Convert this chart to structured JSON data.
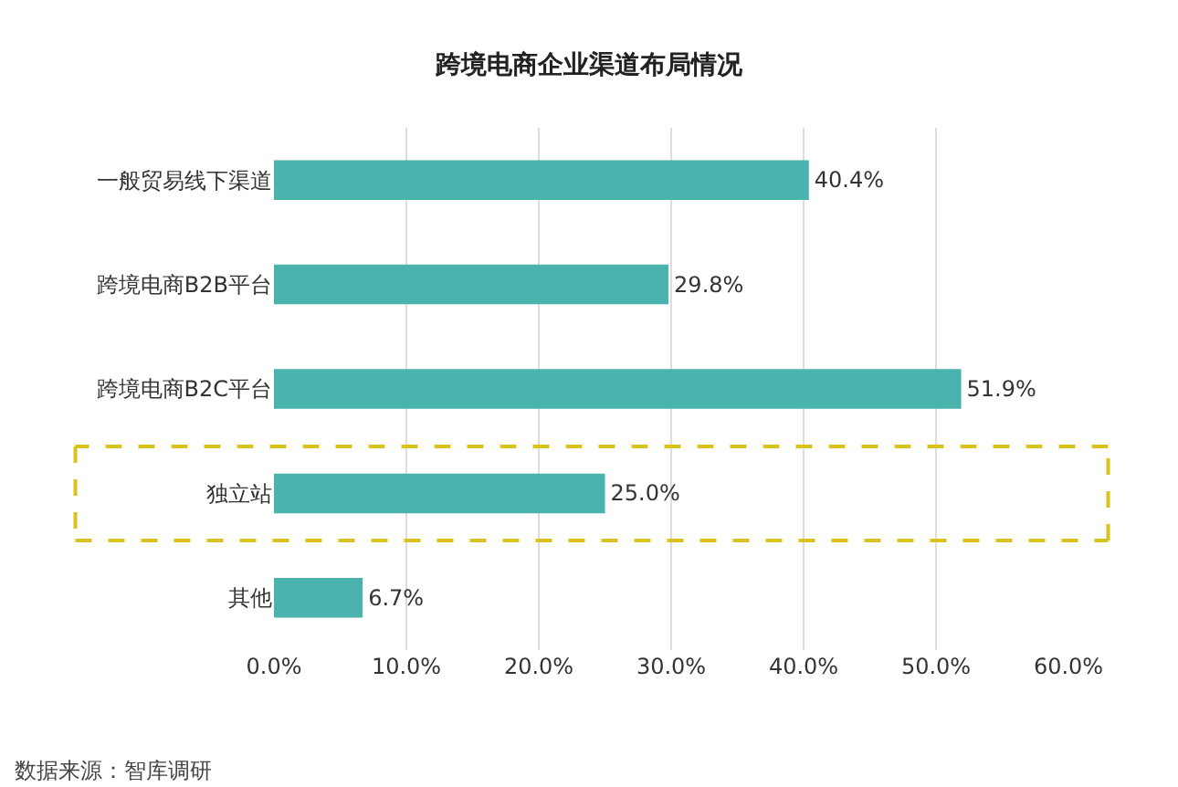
{
  "chart_data": {
    "type": "bar",
    "orientation": "horizontal",
    "title": "跨境电商企业渠道布局情况",
    "categories": [
      "一般贸易线下渠道",
      "跨境电商B2B平台",
      "跨境电商B2C平台",
      "独立站",
      "其他"
    ],
    "values": [
      40.4,
      29.8,
      51.9,
      25.0,
      6.7
    ],
    "value_labels": [
      "40.4%",
      "29.8%",
      "51.9%",
      "25.0%",
      "6.7%"
    ],
    "color": "#4bb3ad",
    "xlim": [
      0,
      60
    ],
    "xticks": [
      {
        "value": 0,
        "label": "0.0%"
      },
      {
        "value": 10,
        "label": "10.0%"
      },
      {
        "value": 20,
        "label": "20.0%"
      },
      {
        "value": 30,
        "label": "30.0%"
      },
      {
        "value": 40,
        "label": "40.0%"
      },
      {
        "value": 50,
        "label": "50.0%"
      },
      {
        "value": 60,
        "label": "60.0%"
      }
    ],
    "grid": "x",
    "annotations": [
      "数据来源：智库调研"
    ]
  }
}
